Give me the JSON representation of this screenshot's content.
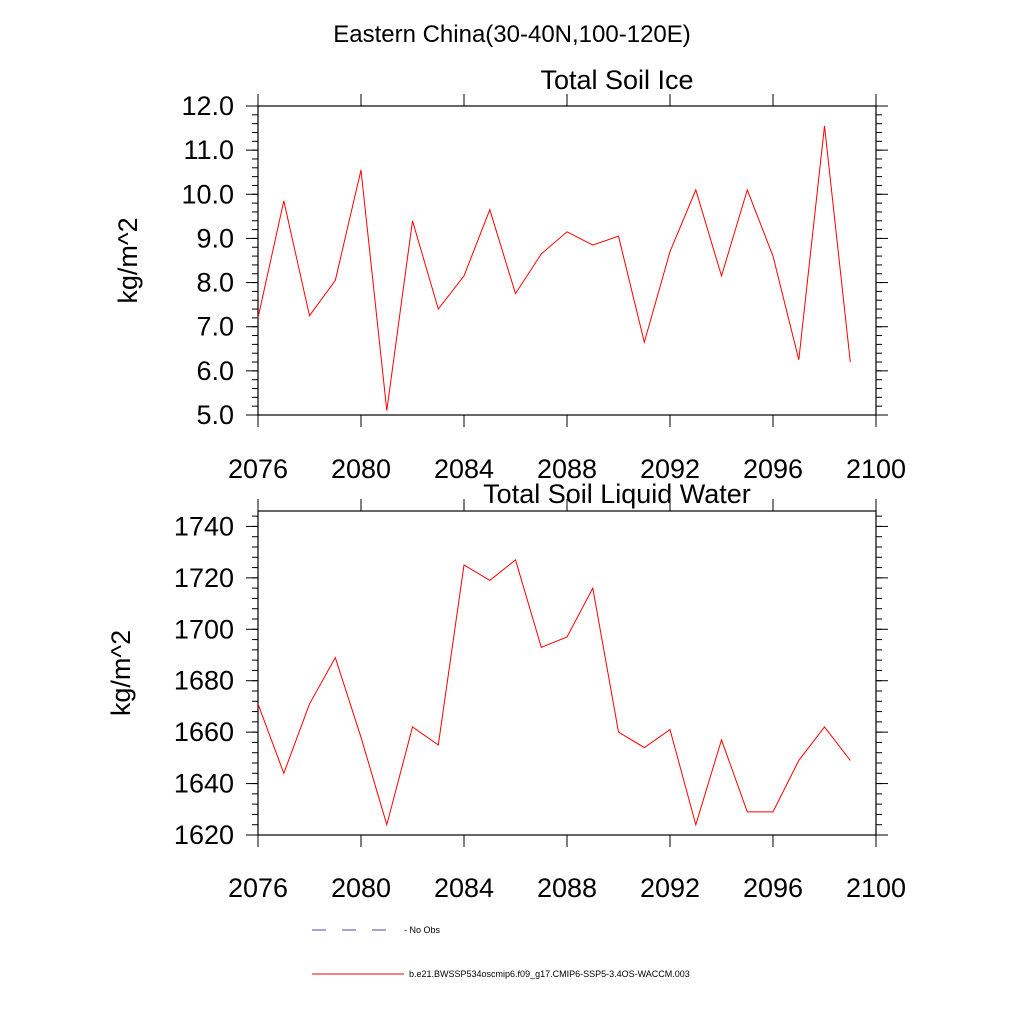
{
  "figure_title": "Eastern China(30-40N,100-120E)",
  "legend": {
    "items": [
      {
        "label": "- No Obs",
        "color": "#4b4b9b",
        "dash": true
      },
      {
        "label": "b.e21.BWSSP534oscmip6.f09_g17.CMIP6-SSP5-3.4OS-WACCM.003",
        "color": "#ff0000",
        "dash": false
      }
    ]
  },
  "chart_data": [
    {
      "type": "line",
      "title": "Total Soil Ice",
      "xlabel": "",
      "ylabel": "kg/m^2",
      "xlim": [
        2076,
        2100
      ],
      "ylim": [
        5,
        12
      ],
      "xticks": [
        2076,
        2080,
        2084,
        2088,
        2092,
        2096,
        2100
      ],
      "yticks": [
        5,
        6,
        7,
        8,
        9,
        10,
        11,
        12
      ],
      "ytick_labels": [
        "5.0",
        "6.0",
        "7.0",
        "8.0",
        "9.0",
        "10.0",
        "11.0",
        "12.0"
      ],
      "series": [
        {
          "color": "#ff0000",
          "x": [
            2076,
            2077,
            2078,
            2079,
            2080,
            2081,
            2082,
            2083,
            2084,
            2085,
            2086,
            2087,
            2088,
            2089,
            2090,
            2091,
            2092,
            2093,
            2094,
            2095,
            2096,
            2097,
            2098,
            2099
          ],
          "values": [
            7.2,
            9.85,
            7.25,
            8.05,
            10.55,
            5.1,
            9.4,
            7.4,
            8.15,
            9.65,
            7.75,
            8.65,
            9.15,
            8.85,
            9.05,
            6.65,
            8.7,
            10.1,
            8.15,
            10.1,
            8.6,
            6.25,
            11.55,
            6.2
          ]
        }
      ]
    },
    {
      "type": "line",
      "title": "Total Soil Liquid Water",
      "xlabel": "",
      "ylabel": "kg/m^2",
      "xlim": [
        2076,
        2100
      ],
      "ylim": [
        1620,
        1746
      ],
      "xticks": [
        2076,
        2080,
        2084,
        2088,
        2092,
        2096,
        2100
      ],
      "yticks": [
        1620,
        1640,
        1660,
        1680,
        1700,
        1720,
        1740
      ],
      "ytick_labels": [
        "1620",
        "1640",
        "1660",
        "1680",
        "1700",
        "1720",
        "1740"
      ],
      "series": [
        {
          "color": "#ff0000",
          "x": [
            2076,
            2077,
            2078,
            2079,
            2080,
            2081,
            2082,
            2083,
            2084,
            2085,
            2086,
            2087,
            2088,
            2089,
            2090,
            2091,
            2092,
            2093,
            2094,
            2095,
            2096,
            2097,
            2098,
            2099
          ],
          "values": [
            1671,
            1644,
            1671,
            1689,
            1658,
            1624,
            1662,
            1655,
            1725,
            1719,
            1727,
            1693,
            1697,
            1716,
            1660,
            1654,
            1661,
            1624,
            1657,
            1629,
            1629,
            1649,
            1662,
            1649
          ]
        }
      ]
    }
  ]
}
